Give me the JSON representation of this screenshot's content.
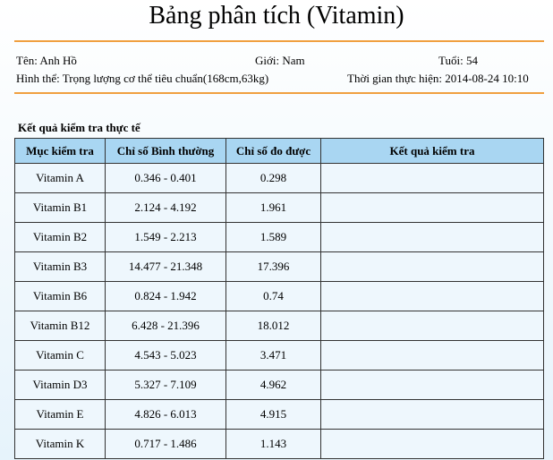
{
  "header": {
    "title": "Bảng phân tích (Vitamin)"
  },
  "info": {
    "name": "Tên: Anh Hồ",
    "gender": "Giới: Nam",
    "age": "Tuổi: 54",
    "body": "Hình thể: Trọng lượng cơ thể tiêu chuẩn(168cm,63kg)",
    "time": "Thời gian thực hiện: 2014-08-24 10:10"
  },
  "section_title": "Kết quả kiểm tra thực tế",
  "table": {
    "headers": [
      "Mục kiểm tra",
      "Chỉ số Bình thường",
      "Chỉ số đo được",
      "Kết quả kiểm tra"
    ],
    "rows": [
      [
        "Vitamin A",
        "0.346 - 0.401",
        "0.298"
      ],
      [
        "Vitamin B1",
        "2.124 - 4.192",
        "1.961"
      ],
      [
        "Vitamin B2",
        "1.549 - 2.213",
        "1.589"
      ],
      [
        "Vitamin B3",
        "14.477 - 21.348",
        "17.396"
      ],
      [
        "Vitamin B6",
        "0.824 - 1.942",
        "0.74"
      ],
      [
        "Vitamin B12",
        "6.428 - 21.396",
        "18.012"
      ],
      [
        "Vitamin C",
        "4.543 - 5.023",
        "3.471"
      ],
      [
        "Vitamin D3",
        "5.327 - 7.109",
        "4.962"
      ],
      [
        "Vitamin E",
        "4.826 - 6.013",
        "4.915"
      ],
      [
        "Vitamin K",
        "0.717 - 1.486",
        "1.143"
      ]
    ]
  }
}
